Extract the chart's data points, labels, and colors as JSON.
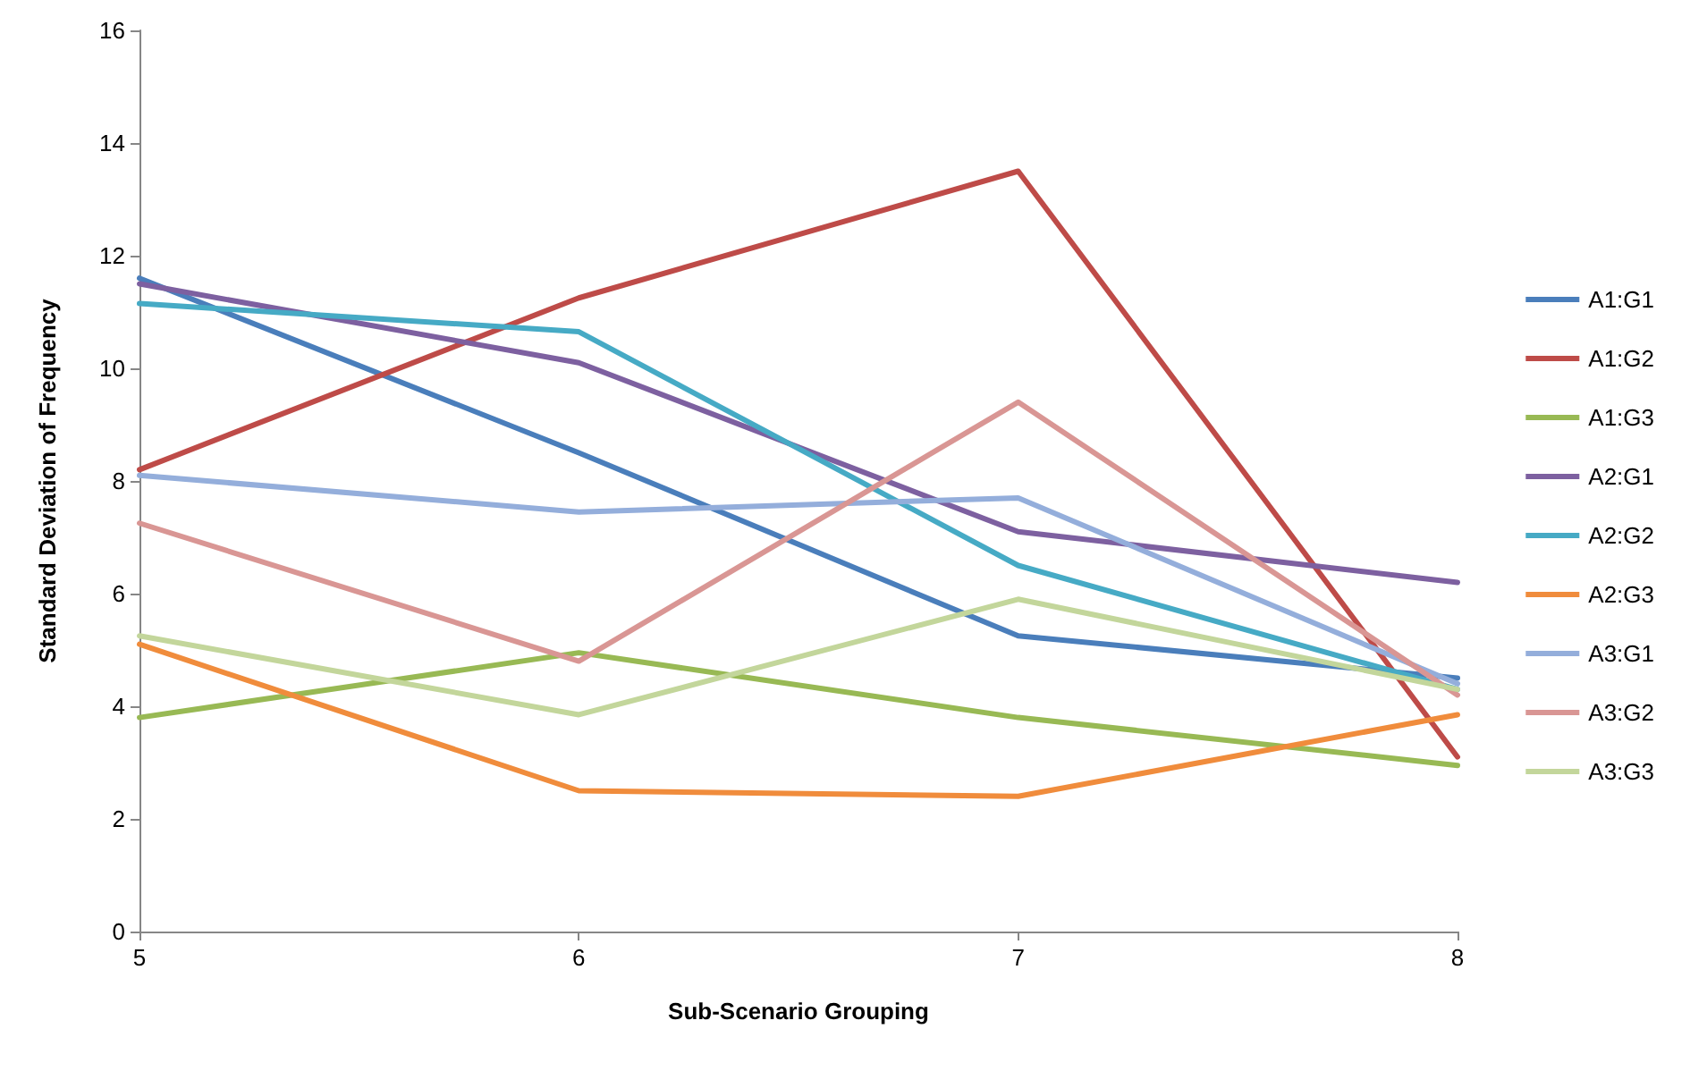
{
  "chart_data": {
    "type": "line",
    "xlabel": "Sub-Scenario Grouping",
    "ylabel": "Standard Deviation of Frequency",
    "x": [
      5,
      6,
      7,
      8
    ],
    "xlim": [
      5,
      8
    ],
    "xticks": [
      5,
      6,
      7,
      8
    ],
    "ylim": [
      0,
      16
    ],
    "yticks": [
      0,
      2,
      4,
      6,
      8,
      10,
      12,
      14,
      16
    ],
    "grid": false,
    "legend": "right",
    "marker": "none",
    "line_style": "solid",
    "series": [
      {
        "name": "A1:G1",
        "color": "#4a7ebb",
        "values": [
          11.6,
          8.5,
          5.25,
          4.5
        ]
      },
      {
        "name": "A1:G2",
        "color": "#be4b48",
        "values": [
          8.2,
          11.25,
          13.5,
          3.1
        ]
      },
      {
        "name": "A1:G3",
        "color": "#98b954",
        "values": [
          3.8,
          4.95,
          3.8,
          2.95
        ]
      },
      {
        "name": "A2:G1",
        "color": "#7d60a0",
        "values": [
          11.5,
          10.1,
          7.1,
          6.2
        ]
      },
      {
        "name": "A2:G2",
        "color": "#46aac5",
        "values": [
          11.15,
          10.65,
          6.5,
          4.3
        ]
      },
      {
        "name": "A2:G3",
        "color": "#f08c3c",
        "values": [
          5.1,
          2.5,
          2.4,
          3.85
        ]
      },
      {
        "name": "A3:G1",
        "color": "#94aedb",
        "values": [
          8.1,
          7.45,
          7.7,
          4.4
        ]
      },
      {
        "name": "A3:G2",
        "color": "#d99694",
        "values": [
          7.25,
          4.8,
          9.4,
          4.2
        ]
      },
      {
        "name": "A3:G3",
        "color": "#c3d69b",
        "values": [
          5.25,
          3.85,
          5.9,
          4.3
        ]
      }
    ]
  }
}
